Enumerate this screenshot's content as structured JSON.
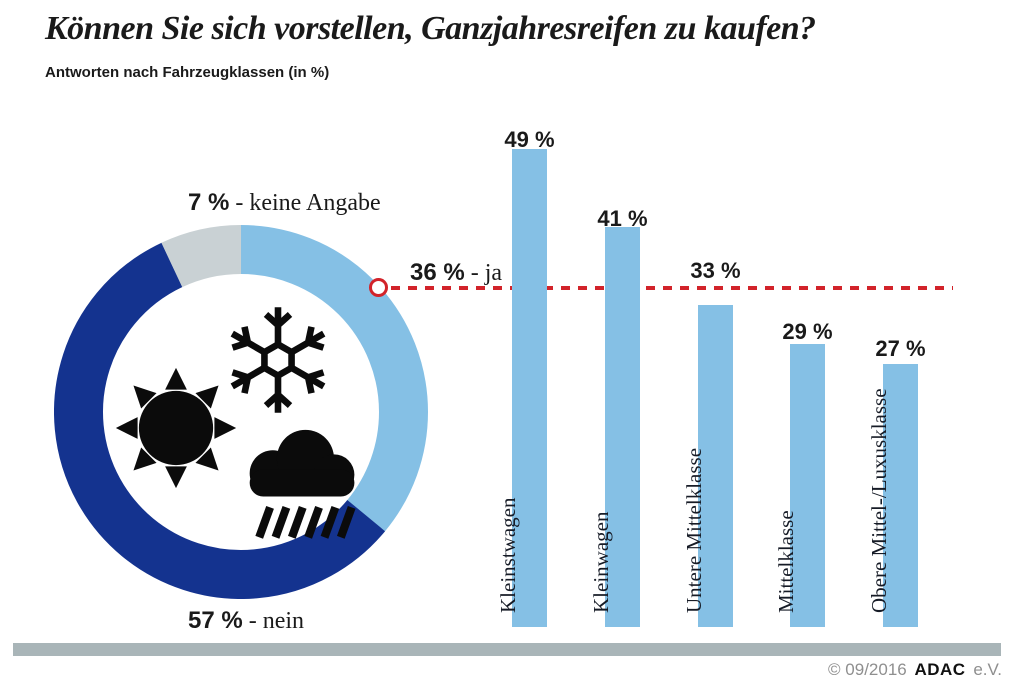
{
  "header": {
    "title": "Können Sie sich vorstellen, Ganzjahresreifen zu kaufen?",
    "subtitle": "Antworten nach Fahrzeugklassen (in %)"
  },
  "donut": {
    "labels": {
      "no_answer": {
        "pct": "7 %",
        "text": " - keine Angabe"
      },
      "no": {
        "pct": "57 %",
        "text": " - nein"
      },
      "yes": {
        "pct": "36 %",
        "text": " - ja"
      }
    }
  },
  "icons": [
    "snowflake-icon",
    "sun-icon",
    "rain-cloud-icon"
  ],
  "footer": {
    "copyright": "© 09/2016",
    "brand": "ADAC",
    "suffix": "e.V."
  },
  "colors": {
    "yes_blue": "#85c0e5",
    "no_navy": "#14338f",
    "no_answer_gray": "#c9d1d4",
    "bar_blue": "#85c0e5",
    "reference_red": "#d2232a",
    "baseline_gray": "#a9b5b8",
    "text_black": "#1a1a1a",
    "footer_gray": "#8f8f8f"
  },
  "chart_data": [
    {
      "type": "pie",
      "subtype": "donut",
      "title": "Können Sie sich vorstellen, Ganzjahresreifen zu kaufen?",
      "segments": [
        {
          "label": "ja",
          "value": 36,
          "color": "#85c0e5"
        },
        {
          "label": "nein",
          "value": 57,
          "color": "#14338f"
        },
        {
          "label": "keine Angabe",
          "value": 7,
          "color": "#c9d1d4"
        }
      ],
      "unit": "%",
      "start_angle_deg": 0,
      "direction": "clockwise",
      "center_icons": [
        "snowflake",
        "sun",
        "rain-cloud"
      ]
    },
    {
      "type": "bar",
      "title": "Antworten nach Fahrzeugklassen (in %)",
      "categories": [
        "Kleinstwagen",
        "Kleinwagen",
        "Untere Mittelklasse",
        "Mittelklasse",
        "Obere Mittel-/Luxusklasse"
      ],
      "values": [
        49,
        41,
        33,
        29,
        27
      ],
      "value_labels": [
        "49 %",
        "41 %",
        "33 %",
        "29 %",
        "27 %"
      ],
      "unit": "%",
      "ylim": [
        0,
        55
      ],
      "grid": false,
      "reference_line": {
        "value": 36,
        "label": "36 %",
        "suffix": " - ja",
        "style": "dashed",
        "color": "#d2232a"
      }
    }
  ]
}
